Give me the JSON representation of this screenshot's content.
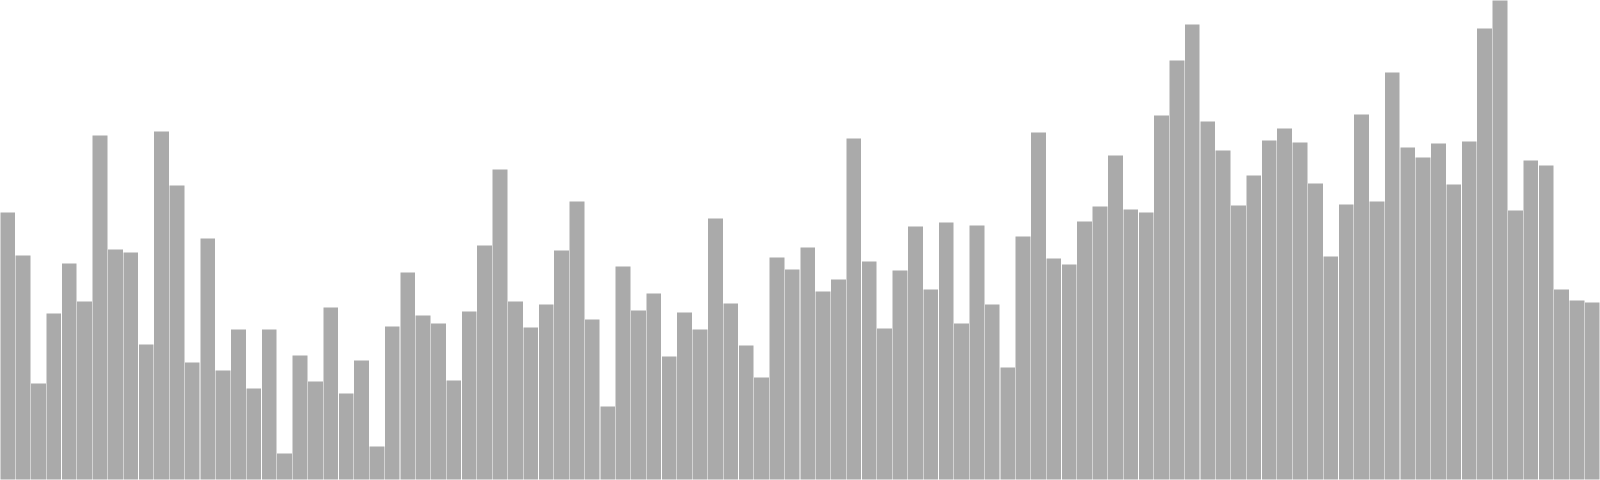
{
  "chart_data": {
    "type": "bar",
    "bar_color": "#aaaaaa",
    "background": "#ffffff",
    "grid": false,
    "legend": "none",
    "ylim": [
      0,
      480
    ],
    "values": [
      268,
      225,
      97,
      167,
      217,
      179,
      345,
      231,
      228,
      136,
      349,
      295,
      118,
      242,
      110,
      151,
      92,
      151,
      27,
      125,
      99,
      173,
      87,
      120,
      34,
      154,
      208,
      165,
      157,
      100,
      169,
      235,
      311,
      179,
      153,
      176,
      230,
      279,
      161,
      74,
      214,
      170,
      187,
      124,
      168,
      151,
      262,
      177,
      135,
      103,
      223,
      211,
      233,
      189,
      201,
      342,
      219,
      152,
      210,
      254,
      191,
      258,
      157,
      255,
      176,
      113,
      244,
      348,
      222,
      216,
      259,
      274,
      325,
      271,
      268,
      365,
      420,
      456,
      359,
      330,
      275,
      305,
      340,
      352,
      338,
      297,
      224,
      276,
      366,
      279,
      408,
      333,
      323,
      337,
      296,
      339,
      452,
      480,
      270,
      320,
      315,
      191,
      180,
      178
    ]
  }
}
